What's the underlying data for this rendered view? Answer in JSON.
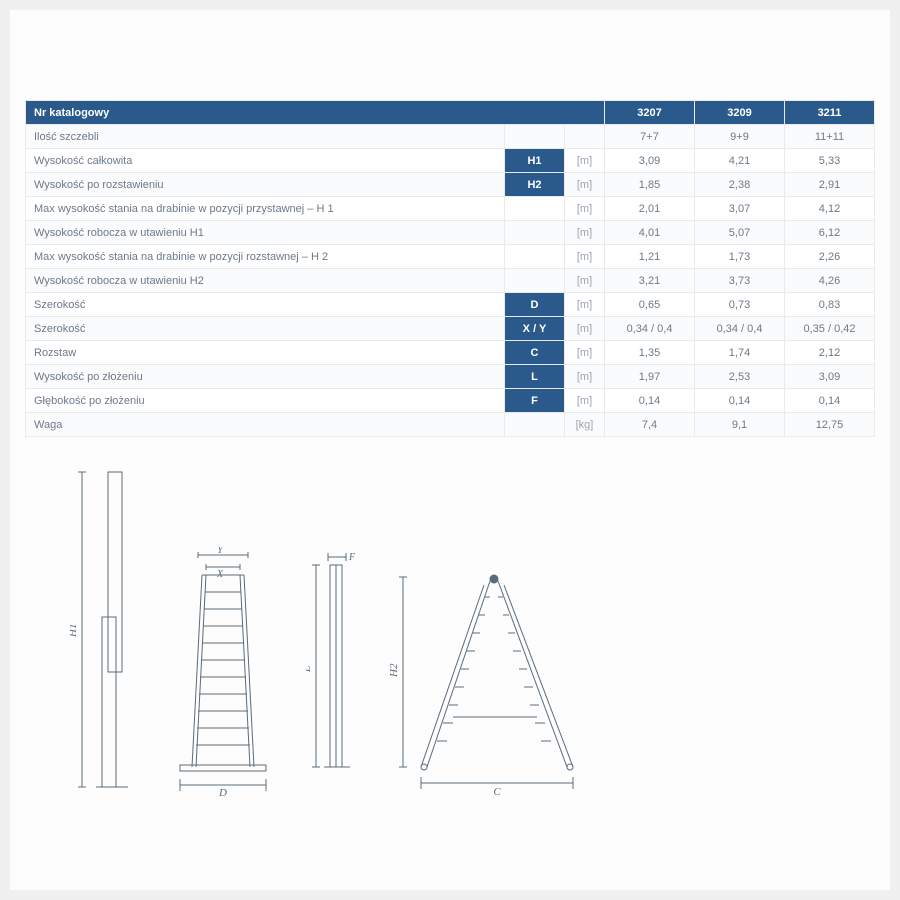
{
  "table": {
    "header_label": "Nr katalogowy",
    "models": [
      "3207",
      "3209",
      "3211"
    ],
    "colors": {
      "header_bg": "#2a5a8c",
      "header_fg": "#ffffff",
      "row_alt_bg": "#fafbfc",
      "row_bg": "#ffffff",
      "border": "#eaeaea",
      "label_fg": "#6b7a88",
      "unit_fg": "#9aa5af"
    },
    "rows": [
      {
        "label": "Ilość szczebli",
        "symbol": "",
        "unit": "",
        "values": [
          "7+7",
          "9+9",
          "11+11"
        ]
      },
      {
        "label": "Wysokość całkowita",
        "symbol": "H1",
        "unit": "[m]",
        "values": [
          "3,09",
          "4,21",
          "5,33"
        ]
      },
      {
        "label": "Wysokość po rozstawieniu",
        "symbol": "H2",
        "unit": "[m]",
        "values": [
          "1,85",
          "2,38",
          "2,91"
        ]
      },
      {
        "label": "Max wysokość stania na drabinie w pozycji przystawnej – H 1",
        "symbol": "",
        "unit": "[m]",
        "values": [
          "2,01",
          "3,07",
          "4,12"
        ]
      },
      {
        "label": "Wysokość robocza w utawieniu H1",
        "symbol": "",
        "unit": "[m]",
        "values": [
          "4,01",
          "5,07",
          "6,12"
        ]
      },
      {
        "label": "Max wysokość stania na drabinie w pozycji rozstawnej – H 2",
        "symbol": "",
        "unit": "[m]",
        "values": [
          "1,21",
          "1,73",
          "2,26"
        ]
      },
      {
        "label": "Wysokość robocza w utawieniu H2",
        "symbol": "",
        "unit": "[m]",
        "values": [
          "3,21",
          "3,73",
          "4,26"
        ]
      },
      {
        "label": "Szerokość",
        "symbol": "D",
        "unit": "[m]",
        "values": [
          "0,65",
          "0,73",
          "0,83"
        ]
      },
      {
        "label": "Szerokość",
        "symbol": "X / Y",
        "unit": "[m]",
        "values": [
          "0,34 / 0,4",
          "0,34 / 0,4",
          "0,35 / 0,42"
        ]
      },
      {
        "label": "Rozstaw",
        "symbol": "C",
        "unit": "[m]",
        "values": [
          "1,35",
          "1,74",
          "2,12"
        ]
      },
      {
        "label": "Wysokość po złożeniu",
        "symbol": "L",
        "unit": "[m]",
        "values": [
          "1,97",
          "2,53",
          "3,09"
        ]
      },
      {
        "label": "Głębokość po złożeniu",
        "symbol": "F",
        "unit": "[m]",
        "values": [
          "0,14",
          "0,14",
          "0,14"
        ]
      },
      {
        "label": "Waga",
        "symbol": "",
        "unit": "[kg]",
        "values": [
          "7,4",
          "9,1",
          "12,75"
        ]
      }
    ]
  },
  "diagrams": {
    "stroke": "#5a6b7a",
    "stroke_width": 1,
    "font": "italic 11px serif",
    "labels": {
      "H1": "H1",
      "H2": "H2",
      "D": "D",
      "C": "C",
      "L": "L",
      "F": "F",
      "X": "X",
      "Y": "Y"
    }
  }
}
